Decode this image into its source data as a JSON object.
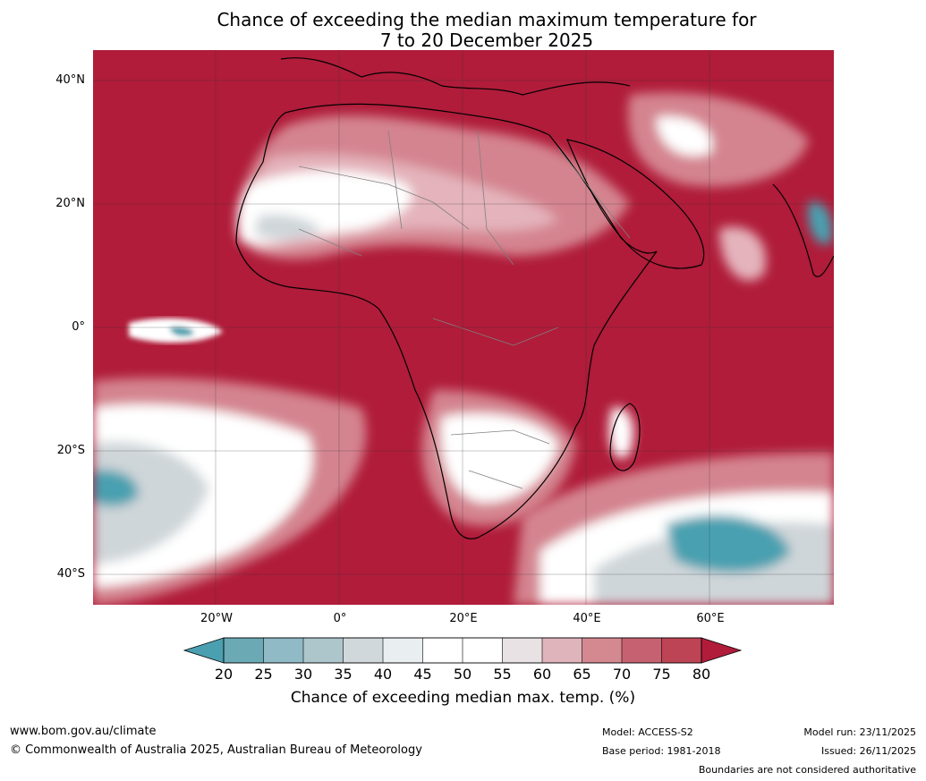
{
  "title": {
    "line1": "Chance of exceeding the median maximum temperature for",
    "line2": "7 to 20 December 2025"
  },
  "map": {
    "latitude_labels": [
      "40°N",
      "20°N",
      "0°",
      "20°S",
      "40°S"
    ],
    "longitude_labels": [
      "20°W",
      "0°",
      "20°E",
      "40°E",
      "60°E"
    ],
    "colors": {
      "very_high": "#b01c3a",
      "high": "#d4848f",
      "moderate": "#e4b3bb",
      "neutral": "#ffffff",
      "low": "#cfd6d9",
      "very_low": "#4aa0b0",
      "land_outline": "#000000",
      "borders": "#808080"
    }
  },
  "colorbar": {
    "ticks": [
      "20",
      "25",
      "30",
      "35",
      "40",
      "45",
      "50",
      "55",
      "60",
      "65",
      "70",
      "75",
      "80"
    ],
    "colors": [
      "#4aa0b0",
      "#6ba9b4",
      "#8fbac6",
      "#adc6cc",
      "#d0d8db",
      "#e9eef0",
      "#ffffff",
      "#ffffff",
      "#e8e2e4",
      "#dfb4bb",
      "#d48890",
      "#c66171",
      "#bd4454",
      "#b01c3a"
    ],
    "label": "Chance of exceeding median max. temp. (%)"
  },
  "footer": {
    "website": "www.bom.gov.au/climate",
    "copyright": "© Commonwealth of Australia 2025, Australian Bureau of Meteorology",
    "model": "Model: ACCESS-S2",
    "base_period": "Base period: 1981-2018",
    "model_run": "Model run: 23/11/2025",
    "issued": "Issued: 26/11/2025",
    "disclaimer": "Boundaries are not considered authoritative"
  }
}
